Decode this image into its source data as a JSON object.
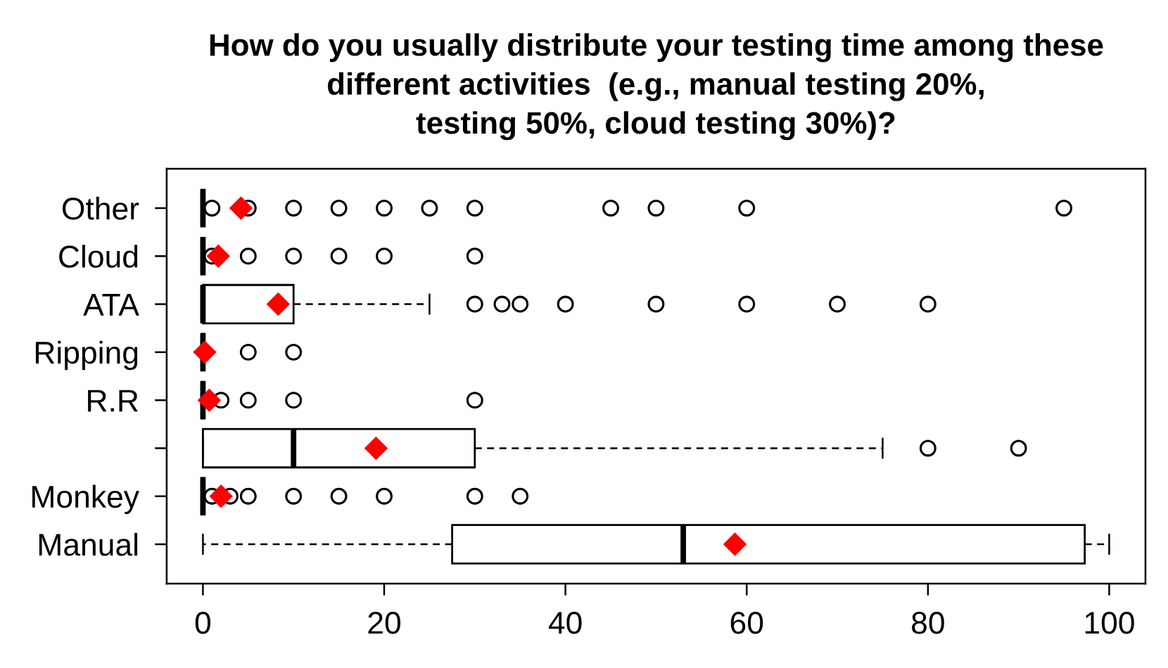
{
  "chart_data": {
    "type": "box",
    "title": "How do you usually distribute your testing time among these\ndifferent activities  (e.g., manual testing 20%,\ntesting 50%, cloud testing 30%)?",
    "orientation": "horizontal",
    "categories": [
      "Other",
      "Cloud",
      "ATA",
      "Ripping",
      "R.R",
      null,
      "Monkey",
      "Manual"
    ],
    "boxes": [
      {
        "low": 0,
        "q1": 0,
        "median": 0,
        "q3": 0,
        "high": 0,
        "mean": 4.2,
        "outliers": [
          1,
          5,
          10,
          15,
          20,
          25,
          30,
          45,
          50,
          60,
          95
        ]
      },
      {
        "low": 0,
        "q1": 0,
        "median": 0,
        "q3": 0,
        "high": 0,
        "mean": 1.7,
        "outliers": [
          1,
          5,
          10,
          15,
          20,
          30
        ]
      },
      {
        "low": 0,
        "q1": 0,
        "median": 0,
        "q3": 10,
        "high": 25,
        "mean": 8.3,
        "outliers": [
          30,
          33,
          35,
          40,
          50,
          60,
          70,
          80
        ]
      },
      {
        "low": 0,
        "q1": 0,
        "median": 0,
        "q3": 0,
        "high": 0,
        "mean": 0.2,
        "outliers": [
          5,
          10
        ]
      },
      {
        "low": 0,
        "q1": 0,
        "median": 0,
        "q3": 0,
        "high": 0,
        "mean": 0.7,
        "outliers": [
          2,
          5,
          10,
          30
        ]
      },
      {
        "low": 0,
        "q1": 0,
        "median": 10,
        "q3": 30,
        "high": 75,
        "mean": 19.1,
        "outliers": [
          80,
          90
        ]
      },
      {
        "low": 0,
        "q1": 0,
        "median": 0,
        "q3": 0,
        "high": 0,
        "mean": 2.0,
        "outliers": [
          1,
          3,
          5,
          10,
          15,
          20,
          30,
          35
        ]
      },
      {
        "low": 0,
        "q1": 27.5,
        "median": 53,
        "q3": 97.3,
        "high": 100,
        "mean": 58.7
      }
    ],
    "xlim": [
      -4,
      104
    ],
    "xticks": [
      0,
      20,
      40,
      60,
      80,
      100
    ],
    "grid": false,
    "marker": "circle",
    "line_style": "dashed"
  }
}
